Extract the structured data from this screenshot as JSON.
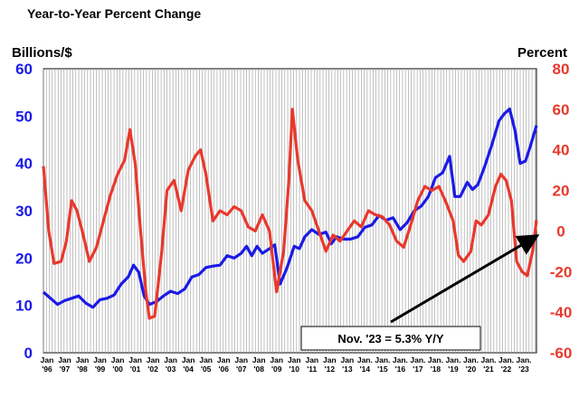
{
  "chart_data": {
    "type": "line",
    "title": "Year-to-Year Percent Change",
    "y_left": {
      "label": "Billions/$",
      "range": [
        0,
        60
      ],
      "ticks": [
        0,
        10,
        20,
        30,
        40,
        50,
        60
      ],
      "color": "#1a1ae6"
    },
    "y_right": {
      "label": "Percent",
      "range": [
        -60,
        80
      ],
      "ticks": [
        -60,
        -40,
        -20,
        0,
        20,
        40,
        60,
        80
      ],
      "color": "#e8382c"
    },
    "x_tick_labels": [
      [
        "Jan",
        "'96"
      ],
      [
        "Jan",
        "'97"
      ],
      [
        "Jan",
        "'98"
      ],
      [
        "Jan",
        "'99"
      ],
      [
        "Jan",
        "'00"
      ],
      [
        "Jan",
        "'01"
      ],
      [
        "Jan",
        "'02"
      ],
      [
        "Jan",
        "'03"
      ],
      [
        "Jan",
        "'04"
      ],
      [
        "Jan",
        "'05"
      ],
      [
        "Jan",
        "'06"
      ],
      [
        "Jan",
        "'07"
      ],
      [
        "Jan",
        "'08"
      ],
      [
        "Jan",
        "'09"
      ],
      [
        "Jan",
        "'10"
      ],
      [
        "Jan",
        "'11"
      ],
      [
        "Jan",
        "'12"
      ],
      [
        "Jan",
        "'13"
      ],
      [
        "Jan.",
        "'14"
      ],
      [
        "Jan.",
        "'15"
      ],
      [
        "Jan.",
        "'16"
      ],
      [
        "Jan.",
        "'17"
      ],
      [
        "Jan.",
        "'18"
      ],
      [
        "Jan.",
        "'19"
      ],
      [
        "Jan.",
        "'20"
      ],
      [
        "Jan.",
        "'21"
      ],
      [
        "Jan.",
        "'22"
      ],
      [
        "Jan.",
        "'23"
      ]
    ],
    "x_range": [
      1996.0,
      2023.92
    ],
    "grid": "vertical",
    "annotation": {
      "text": "Nov. '23 = 5.3% Y/Y",
      "arrow_to": [
        2023.83,
        -3
      ]
    },
    "series": [
      {
        "axis": "left",
        "color": "#1a1ae6",
        "points": [
          [
            1996.0,
            12.8
          ],
          [
            1996.4,
            11.5
          ],
          [
            1996.8,
            10.2
          ],
          [
            1997.2,
            11.0
          ],
          [
            1997.6,
            11.5
          ],
          [
            1998.0,
            12.0
          ],
          [
            1998.4,
            10.5
          ],
          [
            1998.8,
            9.6
          ],
          [
            1999.2,
            11.2
          ],
          [
            1999.6,
            11.5
          ],
          [
            2000.0,
            12.2
          ],
          [
            2000.4,
            14.5
          ],
          [
            2000.8,
            16.0
          ],
          [
            2001.1,
            18.5
          ],
          [
            2001.4,
            17.0
          ],
          [
            2001.7,
            12.0
          ],
          [
            2002.0,
            10.2
          ],
          [
            2002.4,
            10.8
          ],
          [
            2002.8,
            12.0
          ],
          [
            2003.2,
            13.0
          ],
          [
            2003.6,
            12.5
          ],
          [
            2004.0,
            13.5
          ],
          [
            2004.4,
            16.0
          ],
          [
            2004.8,
            16.5
          ],
          [
            2005.2,
            18.0
          ],
          [
            2005.6,
            18.3
          ],
          [
            2006.0,
            18.5
          ],
          [
            2006.4,
            20.5
          ],
          [
            2006.8,
            20.0
          ],
          [
            2007.2,
            21.0
          ],
          [
            2007.5,
            22.5
          ],
          [
            2007.8,
            20.5
          ],
          [
            2008.1,
            22.5
          ],
          [
            2008.4,
            21.0
          ],
          [
            2008.8,
            22.0
          ],
          [
            2009.1,
            22.8
          ],
          [
            2009.4,
            14.5
          ],
          [
            2009.8,
            18.0
          ],
          [
            2010.2,
            22.5
          ],
          [
            2010.5,
            22.0
          ],
          [
            2010.8,
            24.5
          ],
          [
            2011.2,
            26.0
          ],
          [
            2011.6,
            25.0
          ],
          [
            2012.0,
            25.5
          ],
          [
            2012.3,
            23.0
          ],
          [
            2012.6,
            24.5
          ],
          [
            2013.0,
            24.0
          ],
          [
            2013.4,
            24.0
          ],
          [
            2013.8,
            24.5
          ],
          [
            2014.2,
            26.5
          ],
          [
            2014.6,
            27.0
          ],
          [
            2015.0,
            29.0
          ],
          [
            2015.4,
            28.0
          ],
          [
            2015.8,
            28.5
          ],
          [
            2016.2,
            26.0
          ],
          [
            2016.6,
            27.5
          ],
          [
            2017.0,
            30.0
          ],
          [
            2017.4,
            31.0
          ],
          [
            2017.8,
            33.0
          ],
          [
            2018.2,
            37.0
          ],
          [
            2018.6,
            38.0
          ],
          [
            2019.0,
            41.5
          ],
          [
            2019.3,
            33.0
          ],
          [
            2019.6,
            33.0
          ],
          [
            2020.0,
            36.0
          ],
          [
            2020.3,
            34.5
          ],
          [
            2020.6,
            35.5
          ],
          [
            2021.0,
            39.5
          ],
          [
            2021.4,
            44.0
          ],
          [
            2021.8,
            49.0
          ],
          [
            2022.1,
            50.5
          ],
          [
            2022.4,
            51.5
          ],
          [
            2022.7,
            47.0
          ],
          [
            2023.0,
            40.0
          ],
          [
            2023.3,
            40.5
          ],
          [
            2023.6,
            44.0
          ],
          [
            2023.92,
            48.0
          ]
        ]
      },
      {
        "axis": "right",
        "color": "#e8382c",
        "points": [
          [
            1996.0,
            32
          ],
          [
            1996.3,
            0
          ],
          [
            1996.6,
            -16
          ],
          [
            1997.0,
            -15
          ],
          [
            1997.3,
            -5
          ],
          [
            1997.6,
            15
          ],
          [
            1997.9,
            10
          ],
          [
            1998.2,
            0
          ],
          [
            1998.6,
            -15
          ],
          [
            1999.0,
            -8
          ],
          [
            1999.4,
            5
          ],
          [
            1999.8,
            18
          ],
          [
            2000.2,
            28
          ],
          [
            2000.6,
            35
          ],
          [
            2000.9,
            50
          ],
          [
            2001.2,
            33
          ],
          [
            2001.5,
            0
          ],
          [
            2001.8,
            -30
          ],
          [
            2002.0,
            -43
          ],
          [
            2002.3,
            -42
          ],
          [
            2002.7,
            -10
          ],
          [
            2003.0,
            20
          ],
          [
            2003.4,
            25
          ],
          [
            2003.8,
            10
          ],
          [
            2004.2,
            30
          ],
          [
            2004.6,
            37
          ],
          [
            2004.9,
            40
          ],
          [
            2005.2,
            28
          ],
          [
            2005.6,
            5
          ],
          [
            2006.0,
            10
          ],
          [
            2006.4,
            8
          ],
          [
            2006.8,
            12
          ],
          [
            2007.2,
            10
          ],
          [
            2007.6,
            2
          ],
          [
            2008.0,
            0
          ],
          [
            2008.4,
            8
          ],
          [
            2008.8,
            0
          ],
          [
            2009.2,
            -30
          ],
          [
            2009.6,
            -10
          ],
          [
            2009.9,
            25
          ],
          [
            2010.1,
            60
          ],
          [
            2010.4,
            35
          ],
          [
            2010.8,
            15
          ],
          [
            2011.2,
            10
          ],
          [
            2011.6,
            0
          ],
          [
            2012.0,
            -10
          ],
          [
            2012.4,
            -2
          ],
          [
            2012.8,
            -5
          ],
          [
            2013.2,
            0
          ],
          [
            2013.6,
            5
          ],
          [
            2014.0,
            2
          ],
          [
            2014.4,
            10
          ],
          [
            2014.8,
            8
          ],
          [
            2015.2,
            7
          ],
          [
            2015.6,
            3
          ],
          [
            2016.0,
            -5
          ],
          [
            2016.4,
            -8
          ],
          [
            2016.8,
            3
          ],
          [
            2017.2,
            15
          ],
          [
            2017.6,
            22
          ],
          [
            2018.0,
            20
          ],
          [
            2018.4,
            22
          ],
          [
            2018.8,
            14
          ],
          [
            2019.2,
            5
          ],
          [
            2019.5,
            -12
          ],
          [
            2019.8,
            -15
          ],
          [
            2020.2,
            -10
          ],
          [
            2020.5,
            5
          ],
          [
            2020.8,
            3
          ],
          [
            2021.2,
            8
          ],
          [
            2021.6,
            22
          ],
          [
            2021.9,
            28
          ],
          [
            2022.2,
            25
          ],
          [
            2022.5,
            15
          ],
          [
            2022.8,
            -15
          ],
          [
            2023.1,
            -20
          ],
          [
            2023.4,
            -22
          ],
          [
            2023.7,
            -10
          ],
          [
            2023.92,
            5.3
          ]
        ]
      }
    ]
  }
}
